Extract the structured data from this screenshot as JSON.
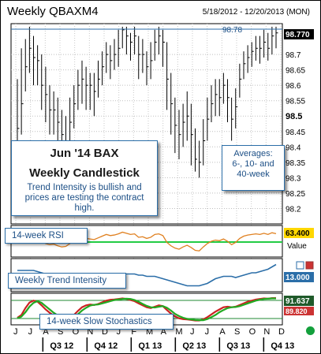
{
  "header": {
    "title": "Weekly QBAXM4",
    "date_range": "5/18/2012 - 12/20/2013 (MON)"
  },
  "callouts": {
    "main_title_line1": "Jun '14 BAX",
    "main_title_line2": "Weekly Candlestick",
    "main_body": "Trend Intensity is bullish and prices are testing the contract high.",
    "averages_line1": "Averages:",
    "averages_line2": "6-, 10- and",
    "averages_line3": "40-week"
  },
  "panels": {
    "rsi_label": "14-week RSI",
    "rsi_value": "63.400",
    "rsi_side_label": "Value",
    "trend_label": "Weekly Trend Intensity",
    "trend_value": "13.000",
    "stoch_label": "14-week Slow Stochastics",
    "stoch_value1": "91.637",
    "stoch_value2": "89.820"
  },
  "colors": {
    "blue": "#2b6ea8",
    "green_line": "#22aa22",
    "red_line": "#cc2222",
    "orange_rsi": "#e08020",
    "gold_badge": "#ffd700",
    "dark_green_badge": "#1f5a2a"
  },
  "chart_data": {
    "type": "line",
    "title": "Weekly QBAXM4",
    "ylim": [
      98.15,
      98.8
    ],
    "yticks": [
      98.2,
      98.25,
      98.3,
      98.35,
      98.4,
      98.45,
      98.5,
      98.55,
      98.6,
      98.65,
      98.7
    ],
    "ytick_labels": [
      "98.2",
      "98.25",
      "98.3",
      "98.35",
      "98.4",
      "98.45",
      "98.5",
      "98.55",
      "98.6",
      "98.65",
      "98.7"
    ],
    "resistance_label": "98.78",
    "last_value_label": "98.770",
    "x_month_labels": [
      "J",
      "J",
      "A",
      "S",
      "O",
      "N",
      "D",
      "J",
      "F",
      "M",
      "A",
      "M",
      "J",
      "J",
      "A",
      "S",
      "O",
      "N",
      "D"
    ],
    "x_quarter_labels": [
      "Q3 12",
      "Q4 12",
      "Q1 13",
      "Q2 13",
      "Q3 13",
      "Q4 13"
    ],
    "series": [
      {
        "values": [
          98.46,
          98.54,
          98.66,
          98.72,
          98.69,
          98.68,
          98.6,
          98.57,
          98.52,
          98.52,
          98.48,
          98.44,
          98.41,
          98.48,
          98.54,
          98.6,
          98.62,
          98.6,
          98.6,
          98.58,
          98.62,
          98.66,
          98.7,
          98.68,
          98.7,
          98.72,
          98.78,
          98.76,
          98.74,
          98.76,
          98.7,
          98.7,
          98.66,
          98.68,
          98.74,
          98.76,
          98.74,
          98.62,
          98.54,
          98.47,
          98.44,
          98.48,
          98.5,
          98.44,
          98.36,
          98.35,
          98.42,
          98.49,
          98.54,
          98.57,
          98.56,
          98.6,
          98.56,
          98.49,
          98.53,
          98.62,
          98.67,
          98.69,
          98.71,
          98.72,
          98.72,
          98.74,
          98.72,
          98.76,
          98.77
        ],
        "highs": [
          98.62,
          98.72,
          98.75,
          98.79,
          98.76,
          98.73,
          98.7,
          98.66,
          98.6,
          98.58,
          98.56,
          98.52,
          98.5,
          98.56,
          98.6,
          98.65,
          98.68,
          98.66,
          98.64,
          98.64,
          98.68,
          98.71,
          98.74,
          98.73,
          98.75,
          98.78,
          98.79,
          98.79,
          98.77,
          98.79,
          98.76,
          98.75,
          98.71,
          98.74,
          98.78,
          98.79,
          98.78,
          98.74,
          98.64,
          98.56,
          98.52,
          98.54,
          98.58,
          98.54,
          98.46,
          98.42,
          98.49,
          98.56,
          98.6,
          98.62,
          98.62,
          98.64,
          98.62,
          98.56,
          98.59,
          98.67,
          98.71,
          98.73,
          98.74,
          98.76,
          98.76,
          98.78,
          98.77,
          98.79,
          98.79
        ],
        "lows": [
          98.4,
          98.44,
          98.58,
          98.64,
          98.6,
          98.6,
          98.52,
          98.48,
          98.44,
          98.44,
          98.38,
          98.36,
          98.34,
          98.4,
          98.46,
          98.52,
          98.54,
          98.52,
          98.52,
          98.5,
          98.56,
          98.6,
          98.64,
          98.62,
          98.65,
          98.66,
          98.72,
          98.7,
          98.68,
          98.7,
          98.62,
          98.64,
          98.6,
          98.62,
          98.68,
          98.7,
          98.66,
          98.52,
          98.44,
          98.38,
          98.36,
          98.4,
          98.42,
          98.34,
          98.32,
          98.3,
          98.34,
          98.42,
          98.48,
          98.5,
          98.5,
          98.54,
          98.48,
          98.42,
          98.46,
          98.56,
          98.62,
          98.64,
          98.66,
          98.68,
          98.67,
          98.69,
          98.68,
          98.7,
          98.72
        ]
      }
    ],
    "rsi": [
      48,
      52,
      60,
      64,
      58,
      55,
      50,
      46,
      44,
      45,
      42,
      40,
      41,
      46,
      52,
      56,
      58,
      55,
      54,
      53,
      56,
      59,
      62,
      60,
      61,
      63,
      66,
      64,
      62,
      63,
      57,
      58,
      55,
      57,
      62,
      63,
      60,
      48,
      42,
      38,
      36,
      40,
      43,
      39,
      34,
      33,
      40,
      46,
      50,
      52,
      51,
      54,
      50,
      44,
      48,
      55,
      59,
      61,
      62,
      63,
      62,
      64,
      62,
      65,
      63.4
    ],
    "rsi_reference": 50,
    "trend_intensity": [
      8,
      8,
      8,
      8,
      8,
      7,
      6,
      5,
      4,
      3,
      2,
      1,
      0,
      -1,
      -1,
      -2,
      -2,
      -1,
      0,
      1,
      2,
      2,
      3,
      3,
      3,
      4,
      4,
      5,
      5,
      5,
      4,
      4,
      3,
      3,
      3,
      2,
      1,
      0,
      -1,
      -2,
      -3,
      -4,
      -5,
      -5,
      -5,
      -5,
      -4,
      -3,
      -1,
      1,
      2,
      3,
      3,
      3,
      2,
      3,
      4,
      5,
      6,
      6,
      7,
      8,
      9,
      11,
      13
    ],
    "stoch_k": [
      20,
      30,
      55,
      75,
      82,
      78,
      65,
      50,
      38,
      28,
      20,
      15,
      12,
      18,
      30,
      45,
      58,
      65,
      68,
      66,
      70,
      76,
      82,
      85,
      86,
      88,
      90,
      88,
      84,
      80,
      72,
      65,
      58,
      55,
      60,
      65,
      62,
      48,
      35,
      25,
      18,
      15,
      14,
      12,
      10,
      10,
      14,
      22,
      32,
      42,
      50,
      58,
      60,
      58,
      60,
      66,
      72,
      78,
      82,
      86,
      88,
      90,
      89,
      91,
      91.6
    ],
    "stoch_d": [
      18,
      24,
      40,
      60,
      74,
      80,
      74,
      62,
      50,
      38,
      28,
      20,
      15,
      15,
      22,
      33,
      46,
      56,
      64,
      67,
      68,
      72,
      76,
      80,
      84,
      86,
      88,
      89,
      88,
      84,
      78,
      70,
      63,
      58,
      57,
      60,
      62,
      56,
      46,
      34,
      26,
      20,
      16,
      14,
      12,
      11,
      11,
      15,
      22,
      30,
      40,
      48,
      55,
      58,
      59,
      62,
      67,
      72,
      77,
      82,
      85,
      88,
      89,
      90,
      89.8
    ]
  }
}
